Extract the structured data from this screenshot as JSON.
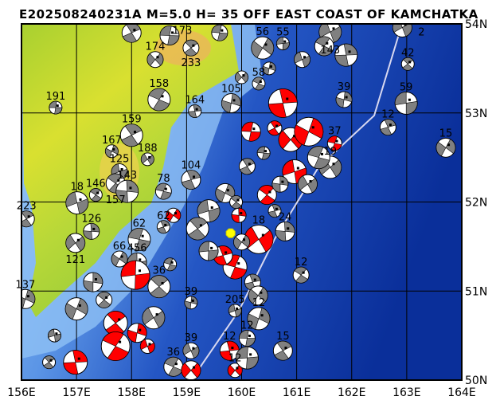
{
  "title": "E202508240231A M=5.0 H= 35 OFF EAST COAST OF KAMCHATKA",
  "map": {
    "lon_range": [
      156,
      164
    ],
    "lat_range": [
      50,
      54
    ],
    "lon_ticks": [
      "156E",
      "157E",
      "158E",
      "159E",
      "160E",
      "161E",
      "162E",
      "163E",
      "164E"
    ],
    "lat_ticks": [
      "50N",
      "51N",
      "52N",
      "53N",
      "54N"
    ],
    "grid": true,
    "epicenter": {
      "lon": 159.8,
      "lat": 51.65,
      "color": "#ffff00"
    },
    "colors": {
      "ocean_deep": "#0a2f9a",
      "ocean_shelf": "#7fb2f0",
      "land": "#9acd32",
      "land_high": "#f0d050",
      "trench": "#d8d8f0",
      "recent_mechanism": "#ff0000",
      "past_mechanism": "#808080"
    }
  },
  "events": [
    {
      "lon": 156.62,
      "lat": 53.06,
      "label": "191",
      "c": "g"
    },
    {
      "lon": 156.09,
      "lat": 51.81,
      "label": "223",
      "c": "g"
    },
    {
      "lon": 156.07,
      "lat": 50.91,
      "label": "137",
      "c": "g"
    },
    {
      "lon": 157.01,
      "lat": 51.99,
      "label": "18",
      "c": "g"
    },
    {
      "lon": 157.35,
      "lat": 52.08,
      "label": "146",
      "c": "g"
    },
    {
      "lon": 157.27,
      "lat": 51.67,
      "label": "126",
      "c": "g"
    },
    {
      "lon": 156.98,
      "lat": 51.54,
      "label": "121",
      "c": "g"
    },
    {
      "lon": 158.14,
      "lat": 51.58,
      "label": "62",
      "c": "g"
    },
    {
      "lon": 158.58,
      "lat": 51.72,
      "label": "62",
      "c": "g"
    },
    {
      "lon": 157.78,
      "lat": 51.36,
      "label": "66",
      "c": "g"
    },
    {
      "lon": 158.1,
      "lat": 51.32,
      "label": "456",
      "c": "g"
    },
    {
      "lon": 158.5,
      "lat": 51.05,
      "label": "36",
      "c": "g"
    },
    {
      "lon": 159.08,
      "lat": 50.87,
      "label": "39",
      "c": "g"
    },
    {
      "lon": 159.08,
      "lat": 50.33,
      "label": "39",
      "c": "g"
    },
    {
      "lon": 158.76,
      "lat": 50.15,
      "label": "36",
      "c": "g"
    },
    {
      "lon": 159.78,
      "lat": 50.33,
      "label": "12",
      "c": "r"
    },
    {
      "lon": 159.88,
      "lat": 50.11,
      "label": "12",
      "c": "r"
    },
    {
      "lon": 160.1,
      "lat": 50.47,
      "label": "12",
      "c": "g"
    },
    {
      "lon": 160.75,
      "lat": 50.33,
      "label": "15",
      "c": "g"
    },
    {
      "lon": 160.31,
      "lat": 50.69,
      "label": "12",
      "c": "g"
    },
    {
      "lon": 159.88,
      "lat": 50.78,
      "label": "205",
      "c": "g"
    },
    {
      "lon": 161.08,
      "lat": 51.18,
      "label": "12",
      "c": "g"
    },
    {
      "lon": 160.79,
      "lat": 51.67,
      "label": "24",
      "c": "g"
    },
    {
      "lon": 161.61,
      "lat": 52.39,
      "label": "19",
      "c": "g"
    },
    {
      "lon": 161.69,
      "lat": 52.66,
      "label": "37",
      "c": "r"
    },
    {
      "lon": 162.66,
      "lat": 52.84,
      "label": "12",
      "c": "g"
    },
    {
      "lon": 163.71,
      "lat": 52.61,
      "label": "15",
      "c": "g"
    },
    {
      "lon": 162.99,
      "lat": 53.11,
      "label": "59",
      "c": "g"
    },
    {
      "lon": 163.02,
      "lat": 53.55,
      "label": "42",
      "c": "g"
    },
    {
      "lon": 161.86,
      "lat": 53.15,
      "label": "39",
      "c": "g"
    },
    {
      "lon": 162.92,
      "lat": 53.96,
      "label": "2",
      "c": "g"
    },
    {
      "lon": 158.5,
      "lat": 53.15,
      "label": "158",
      "c": "g"
    },
    {
      "lon": 159.15,
      "lat": 53.02,
      "label": "164",
      "c": "g"
    },
    {
      "lon": 158.43,
      "lat": 53.6,
      "label": "174",
      "c": "g"
    },
    {
      "lon": 158.69,
      "lat": 53.87,
      "label": "173",
      "c": "g"
    },
    {
      "lon": 158.0,
      "lat": 52.75,
      "label": "159",
      "c": "g"
    },
    {
      "lon": 157.64,
      "lat": 52.57,
      "label": "167",
      "c": "g"
    },
    {
      "lon": 157.78,
      "lat": 52.34,
      "label": "125",
      "c": "g"
    },
    {
      "lon": 157.71,
      "lat": 52.21,
      "label": "157",
      "c": "g"
    },
    {
      "lon": 157.92,
      "lat": 52.12,
      "label": "143",
      "c": "g"
    },
    {
      "lon": 158.29,
      "lat": 52.48,
      "label": "188",
      "c": "g"
    },
    {
      "lon": 158.58,
      "lat": 52.12,
      "label": "78",
      "c": "g"
    },
    {
      "lon": 159.08,
      "lat": 52.25,
      "label": "104",
      "c": "g"
    },
    {
      "lon": 160.38,
      "lat": 53.73,
      "label": "56",
      "c": "g"
    },
    {
      "lon": 160.75,
      "lat": 53.78,
      "label": "55",
      "c": "g"
    },
    {
      "lon": 159.08,
      "lat": 53.73,
      "label": "233",
      "c": "g"
    },
    {
      "lon": 159.81,
      "lat": 53.11,
      "label": "105",
      "c": "g"
    },
    {
      "lon": 161.61,
      "lat": 53.91,
      "label": "143",
      "c": "g"
    },
    {
      "lon": 160.31,
      "lat": 53.33,
      "label": "58",
      "c": "g"
    },
    {
      "lon": 160.75,
      "lat": 53.11,
      "label": "",
      "c": "r"
    },
    {
      "lon": 160.89,
      "lat": 52.7,
      "label": "",
      "c": "r"
    },
    {
      "lon": 160.17,
      "lat": 52.79,
      "label": "",
      "c": "r"
    },
    {
      "lon": 160.6,
      "lat": 52.83,
      "label": "",
      "c": "r"
    },
    {
      "lon": 161.22,
      "lat": 52.79,
      "label": "",
      "c": "r"
    },
    {
      "lon": 160.96,
      "lat": 52.34,
      "label": "",
      "c": "r"
    },
    {
      "lon": 160.46,
      "lat": 52.08,
      "label": "",
      "c": "r"
    },
    {
      "lon": 159.95,
      "lat": 51.85,
      "label": "",
      "c": "r"
    },
    {
      "lon": 160.31,
      "lat": 51.58,
      "label": "18",
      "c": "r"
    },
    {
      "lon": 159.88,
      "lat": 51.27,
      "label": "",
      "c": "r"
    },
    {
      "lon": 159.66,
      "lat": 51.4,
      "label": "",
      "c": "r"
    },
    {
      "lon": 158.76,
      "lat": 51.85,
      "label": "",
      "c": "r"
    },
    {
      "lon": 158.07,
      "lat": 51.18,
      "label": "",
      "c": "r"
    },
    {
      "lon": 157.71,
      "lat": 50.64,
      "label": "",
      "c": "r"
    },
    {
      "lon": 158.1,
      "lat": 50.53,
      "label": "",
      "c": "r"
    },
    {
      "lon": 158.29,
      "lat": 50.38,
      "label": "",
      "c": "r"
    },
    {
      "lon": 157.71,
      "lat": 50.38,
      "label": "",
      "c": "r"
    },
    {
      "lon": 156.98,
      "lat": 50.2,
      "label": "",
      "c": "r"
    },
    {
      "lon": 159.08,
      "lat": 50.11,
      "label": "",
      "c": "r"
    },
    {
      "lon": 160.4,
      "lat": 52.55,
      "label": "",
      "c": "g"
    },
    {
      "lon": 160.1,
      "lat": 52.4,
      "label": "",
      "c": "g"
    },
    {
      "lon": 159.7,
      "lat": 52.1,
      "label": "",
      "c": "g"
    },
    {
      "lon": 159.4,
      "lat": 51.9,
      "label": "",
      "c": "g"
    },
    {
      "lon": 159.9,
      "lat": 52.0,
      "label": "",
      "c": "g"
    },
    {
      "lon": 160.7,
      "lat": 52.2,
      "label": "",
      "c": "g"
    },
    {
      "lon": 161.2,
      "lat": 52.2,
      "label": "",
      "c": "g"
    },
    {
      "lon": 161.4,
      "lat": 52.5,
      "label": "",
      "c": "g"
    },
    {
      "lon": 160.6,
      "lat": 51.9,
      "label": "",
      "c": "g"
    },
    {
      "lon": 160.0,
      "lat": 51.55,
      "label": "",
      "c": "g"
    },
    {
      "lon": 159.4,
      "lat": 51.45,
      "label": "",
      "c": "g"
    },
    {
      "lon": 159.2,
      "lat": 51.7,
      "label": "",
      "c": "g"
    },
    {
      "lon": 160.5,
      "lat": 53.5,
      "label": "",
      "c": "g"
    },
    {
      "lon": 161.1,
      "lat": 53.6,
      "label": "",
      "c": "g"
    },
    {
      "lon": 161.5,
      "lat": 53.75,
      "label": "",
      "c": "g"
    },
    {
      "lon": 161.9,
      "lat": 53.65,
      "label": "",
      "c": "g"
    },
    {
      "lon": 160.0,
      "lat": 53.4,
      "label": "",
      "c": "g"
    },
    {
      "lon": 159.6,
      "lat": 53.9,
      "label": "",
      "c": "g"
    },
    {
      "lon": 158.0,
      "lat": 53.9,
      "label": "",
      "c": "g"
    },
    {
      "lon": 157.0,
      "lat": 50.8,
      "label": "",
      "c": "g"
    },
    {
      "lon": 156.6,
      "lat": 50.5,
      "label": "",
      "c": "g"
    },
    {
      "lon": 157.5,
      "lat": 50.9,
      "label": "",
      "c": "g"
    },
    {
      "lon": 157.3,
      "lat": 51.1,
      "label": "",
      "c": "g"
    },
    {
      "lon": 158.4,
      "lat": 50.7,
      "label": "",
      "c": "g"
    },
    {
      "lon": 158.7,
      "lat": 51.3,
      "label": "",
      "c": "g"
    },
    {
      "lon": 160.2,
      "lat": 51.1,
      "label": "",
      "c": "g"
    },
    {
      "lon": 160.3,
      "lat": 50.95,
      "label": "",
      "c": "g"
    },
    {
      "lon": 160.1,
      "lat": 50.25,
      "label": "",
      "c": "g"
    },
    {
      "lon": 156.5,
      "lat": 50.2,
      "label": "",
      "c": "g"
    }
  ]
}
